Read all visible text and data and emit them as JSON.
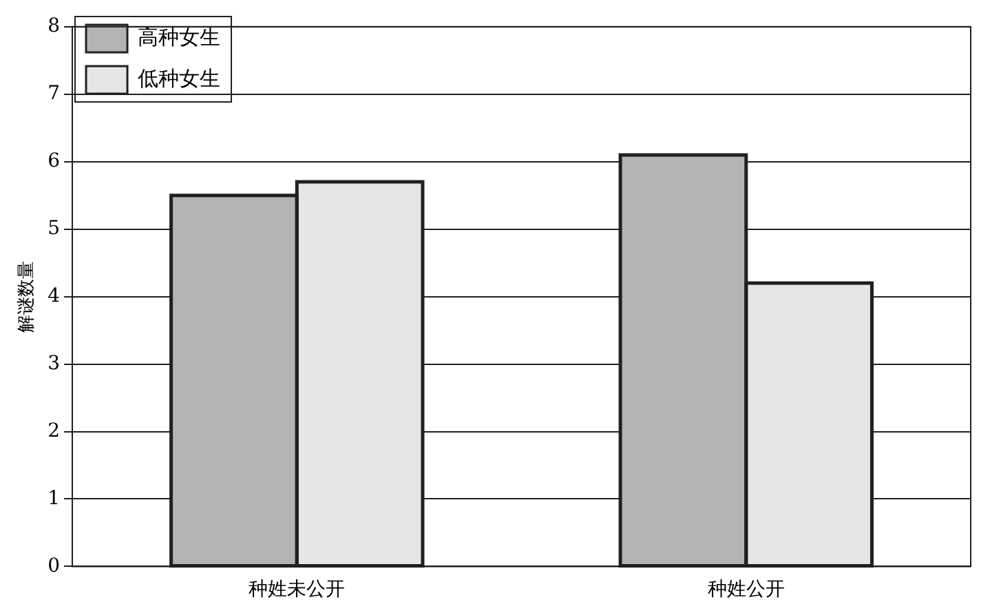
{
  "chart_data": {
    "type": "bar",
    "ylabel": "解谜数量",
    "categories": [
      "种姓未公开",
      "种姓公开"
    ],
    "series": [
      {
        "name": "高种女生",
        "color": "#b3b3b3",
        "values": [
          5.5,
          6.1
        ]
      },
      {
        "name": "低种女生",
        "color": "#e6e6e6",
        "values": [
          5.7,
          4.2
        ]
      }
    ],
    "ylim": [
      0,
      8
    ],
    "yticks": [
      0,
      1,
      2,
      3,
      4,
      5,
      6,
      7,
      8
    ],
    "grid": "y",
    "legend": "top left"
  }
}
